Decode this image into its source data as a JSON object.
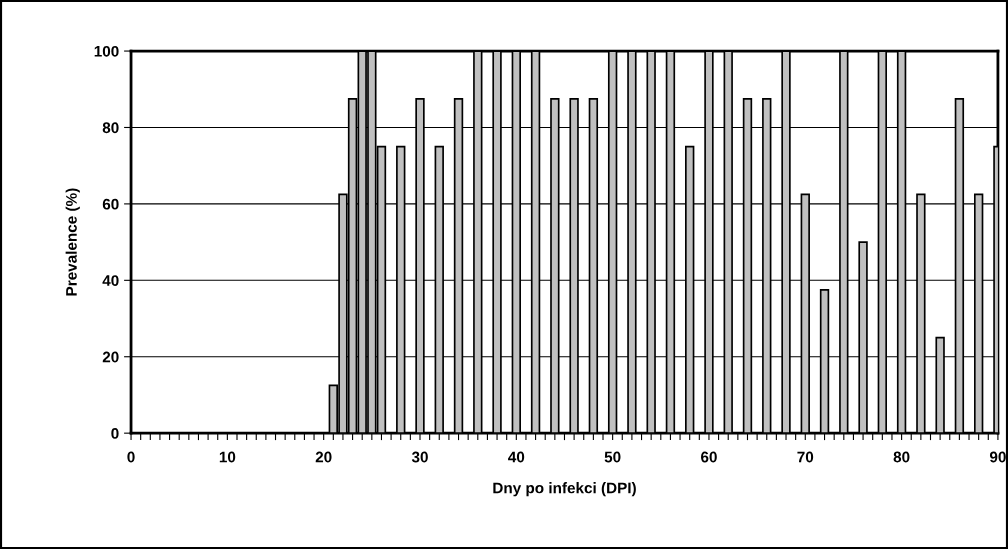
{
  "chart_data": {
    "type": "bar",
    "xlabel": "Dny po infekci (DPI)",
    "ylabel": "Prevalence (%)",
    "x": [
      21,
      22,
      23,
      24,
      25,
      26,
      28,
      30,
      32,
      34,
      36,
      38,
      40,
      42,
      44,
      46,
      48,
      50,
      52,
      54,
      56,
      58,
      60,
      62,
      64,
      66,
      68,
      70,
      72,
      74,
      76,
      78,
      80,
      82,
      84,
      86,
      88,
      90
    ],
    "values": [
      12.5,
      62.5,
      87.5,
      100,
      100,
      75,
      75,
      87.5,
      75,
      87.5,
      100,
      100,
      100,
      100,
      87.5,
      87.5,
      87.5,
      100,
      100,
      100,
      100,
      75,
      100,
      100,
      87.5,
      87.5,
      100,
      62.5,
      37.5,
      100,
      50,
      100,
      100,
      62.5,
      25,
      87.5,
      62.5,
      75
    ],
    "color": "#c0c0c0",
    "xlim": [
      0,
      90
    ],
    "xticks": [
      0,
      {
        "value": 1,
        "label": null
      },
      {
        "value": 2,
        "label": null
      },
      {
        "value": 3,
        "label": null
      },
      {
        "value": 4,
        "label": null
      },
      {
        "value": 5,
        "label": null
      },
      {
        "value": 6,
        "label": null
      },
      {
        "value": 7,
        "label": null
      },
      {
        "value": 8,
        "label": null
      },
      {
        "value": 9,
        "label": null
      },
      10,
      {
        "value": 11,
        "label": null
      },
      {
        "value": 12,
        "label": null
      },
      {
        "value": 13,
        "label": null
      },
      {
        "value": 14,
        "label": null
      },
      {
        "value": 15,
        "label": null
      },
      {
        "value": 16,
        "label": null
      },
      {
        "value": 17,
        "label": null
      },
      {
        "value": 18,
        "label": null
      },
      {
        "value": 19,
        "label": null
      },
      20,
      {
        "value": 21,
        "label": null
      },
      {
        "value": 22,
        "label": null
      },
      {
        "value": 23,
        "label": null
      },
      {
        "value": 24,
        "label": null
      },
      {
        "value": 25,
        "label": null
      },
      {
        "value": 26,
        "label": null
      },
      {
        "value": 27,
        "label": null
      },
      {
        "value": 28,
        "label": null
      },
      {
        "value": 29,
        "label": null
      },
      30,
      {
        "value": 31,
        "label": null
      },
      {
        "value": 32,
        "label": null
      },
      {
        "value": 33,
        "label": null
      },
      {
        "value": 34,
        "label": null
      },
      {
        "value": 35,
        "label": null
      },
      {
        "value": 36,
        "label": null
      },
      {
        "value": 37,
        "label": null
      },
      {
        "value": 38,
        "label": null
      },
      {
        "value": 39,
        "label": null
      },
      40,
      {
        "value": 41,
        "label": null
      },
      {
        "value": 42,
        "label": null
      },
      {
        "value": 43,
        "label": null
      },
      {
        "value": 44,
        "label": null
      },
      {
        "value": 45,
        "label": null
      },
      {
        "value": 46,
        "label": null
      },
      {
        "value": 47,
        "label": null
      },
      {
        "value": 48,
        "label": null
      },
      {
        "value": 49,
        "label": null
      },
      50,
      {
        "value": 51,
        "label": null
      },
      {
        "value": 52,
        "label": null
      },
      {
        "value": 53,
        "label": null
      },
      {
        "value": 54,
        "label": null
      },
      {
        "value": 55,
        "label": null
      },
      {
        "value": 56,
        "label": null
      },
      {
        "value": 57,
        "label": null
      },
      {
        "value": 58,
        "label": null
      },
      {
        "value": 59,
        "label": null
      },
      60,
      {
        "value": 61,
        "label": null
      },
      {
        "value": 62,
        "label": null
      },
      {
        "value": 63,
        "label": null
      },
      {
        "value": 64,
        "label": null
      },
      {
        "value": 65,
        "label": null
      },
      {
        "value": 66,
        "label": null
      },
      {
        "value": 67,
        "label": null
      },
      {
        "value": 68,
        "label": null
      },
      {
        "value": 69,
        "label": null
      },
      70,
      {
        "value": 71,
        "label": null
      },
      {
        "value": 72,
        "label": null
      },
      {
        "value": 73,
        "label": null
      },
      {
        "value": 74,
        "label": null
      },
      {
        "value": 75,
        "label": null
      },
      {
        "value": 76,
        "label": null
      },
      {
        "value": 77,
        "label": null
      },
      {
        "value": 78,
        "label": null
      },
      {
        "value": 79,
        "label": null
      },
      80,
      {
        "value": 81,
        "label": null
      },
      {
        "value": 82,
        "label": null
      },
      {
        "value": 83,
        "label": null
      },
      {
        "value": 84,
        "label": null
      },
      {
        "value": 85,
        "label": null
      },
      {
        "value": 86,
        "label": null
      },
      {
        "value": 87,
        "label": null
      },
      {
        "value": 88,
        "label": null
      },
      {
        "value": 89,
        "label": null
      },
      90
    ],
    "ylim": [
      0,
      100
    ],
    "yticks": [
      0,
      20,
      40,
      60,
      80,
      100
    ],
    "grid": "y",
    "legend": false
  }
}
